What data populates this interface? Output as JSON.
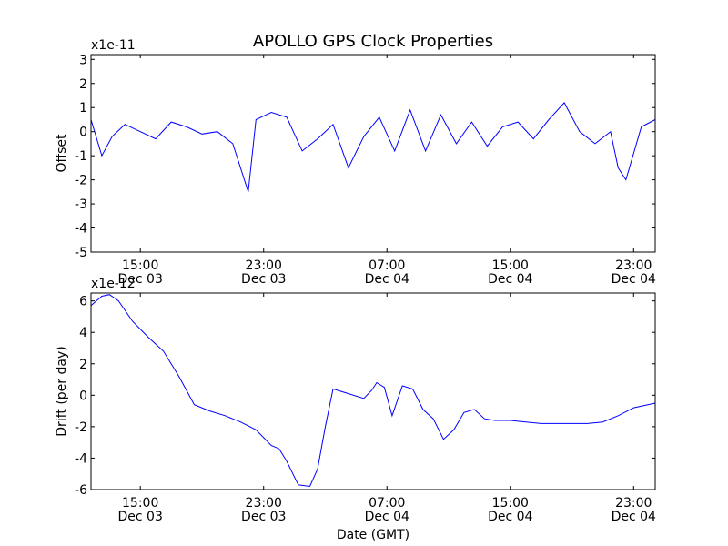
{
  "figure": {
    "title": "APOLLO GPS Clock Properties",
    "xlabel": "Date (GMT)"
  },
  "chart_data": [
    {
      "type": "line",
      "title": "APOLLO GPS Clock Properties",
      "ylabel": "Offset",
      "offset_text": "x1e-11",
      "color": "#0000ff",
      "xlim": [
        "2008-12-03 11:48",
        "2008-12-05 00:24"
      ],
      "ylim": [
        -5,
        3.2
      ],
      "yticks": [
        3,
        2,
        1,
        0,
        -1,
        -2,
        -3,
        -4,
        -5
      ],
      "ytick_labels": [
        "3",
        "2",
        "1",
        "0",
        "-1",
        "-2",
        "-3",
        "-4",
        "-5"
      ],
      "xticks": [
        "2008-12-03 15:00",
        "2008-12-03 23:00",
        "2008-12-04 07:00",
        "2008-12-04 15:00",
        "2008-12-04 23:00"
      ],
      "xtick_labels": [
        [
          "15:00",
          "Dec 03"
        ],
        [
          "23:00",
          "Dec 03"
        ],
        [
          "07:00",
          "Dec 04"
        ],
        [
          "15:00",
          "Dec 04"
        ],
        [
          "23:00",
          "Dec 04"
        ]
      ],
      "grid": false,
      "series": [
        {
          "x": [
            "2008-12-03 11:48",
            "2008-12-03 12:30",
            "2008-12-03 13:10",
            "2008-12-03 14:00",
            "2008-12-03 15:00",
            "2008-12-03 16:00",
            "2008-12-03 17:00",
            "2008-12-03 18:00",
            "2008-12-03 19:00",
            "2008-12-03 20:00",
            "2008-12-03 21:00",
            "2008-12-03 22:00",
            "2008-12-03 22:30",
            "2008-12-03 23:30",
            "2008-12-04 00:30",
            "2008-12-04 01:30",
            "2008-12-04 02:30",
            "2008-12-04 03:30",
            "2008-12-04 04:30",
            "2008-12-04 05:30",
            "2008-12-04 06:30",
            "2008-12-04 07:30",
            "2008-12-04 08:30",
            "2008-12-04 09:30",
            "2008-12-04 10:30",
            "2008-12-04 11:30",
            "2008-12-04 12:30",
            "2008-12-04 13:30",
            "2008-12-04 14:30",
            "2008-12-04 15:30",
            "2008-12-04 16:30",
            "2008-12-04 17:30",
            "2008-12-04 18:30",
            "2008-12-04 19:30",
            "2008-12-04 20:30",
            "2008-12-04 21:30",
            "2008-12-04 22:00",
            "2008-12-04 22:30",
            "2008-12-04 23:30",
            "2008-12-05 00:24"
          ],
          "values": [
            0.5,
            -1.0,
            -0.2,
            0.3,
            0.0,
            -0.3,
            0.4,
            0.2,
            -0.1,
            0.0,
            -0.5,
            -2.5,
            0.5,
            0.8,
            0.6,
            -0.8,
            -0.3,
            0.3,
            -1.5,
            -0.2,
            0.6,
            -0.8,
            0.9,
            -0.8,
            0.7,
            -0.5,
            0.4,
            -0.6,
            0.2,
            0.4,
            -0.3,
            0.5,
            1.2,
            0.0,
            -0.5,
            0.0,
            -1.5,
            -2.0,
            0.2,
            0.5
          ]
        }
      ]
    },
    {
      "type": "line",
      "ylabel": "Drift (per day)",
      "offset_text": "x1e-12",
      "color": "#0000ff",
      "xlim": [
        "2008-12-03 11:48",
        "2008-12-05 00:24"
      ],
      "ylim": [
        -6,
        6.5
      ],
      "yticks": [
        6,
        4,
        2,
        0,
        -2,
        -4,
        -6
      ],
      "ytick_labels": [
        "6",
        "4",
        "2",
        "0",
        "-2",
        "-4",
        "-6"
      ],
      "xticks": [
        "2008-12-03 15:00",
        "2008-12-03 23:00",
        "2008-12-04 07:00",
        "2008-12-04 15:00",
        "2008-12-04 23:00"
      ],
      "xtick_labels": [
        [
          "15:00",
          "Dec 03"
        ],
        [
          "23:00",
          "Dec 03"
        ],
        [
          "07:00",
          "Dec 04"
        ],
        [
          "15:00",
          "Dec 04"
        ],
        [
          "23:00",
          "Dec 04"
        ]
      ],
      "grid": false,
      "series": [
        {
          "x": [
            "2008-12-03 11:48",
            "2008-12-03 12:30",
            "2008-12-03 13:00",
            "2008-12-03 13:35",
            "2008-12-03 14:30",
            "2008-12-03 15:30",
            "2008-12-03 16:30",
            "2008-12-03 17:30",
            "2008-12-03 18:30",
            "2008-12-03 19:30",
            "2008-12-03 20:30",
            "2008-12-03 21:30",
            "2008-12-03 22:30",
            "2008-12-03 23:30",
            "2008-12-04 00:00",
            "2008-12-04 00:30",
            "2008-12-04 01:15",
            "2008-12-04 02:00",
            "2008-12-04 02:30",
            "2008-12-04 03:00",
            "2008-12-04 03:30",
            "2008-12-04 04:30",
            "2008-12-04 05:30",
            "2008-12-04 06:00",
            "2008-12-04 06:20",
            "2008-12-04 06:50",
            "2008-12-04 07:20",
            "2008-12-04 08:00",
            "2008-12-04 08:40",
            "2008-12-04 09:20",
            "2008-12-04 10:00",
            "2008-12-04 10:40",
            "2008-12-04 11:20",
            "2008-12-04 12:00",
            "2008-12-04 12:40",
            "2008-12-04 13:20",
            "2008-12-04 14:00",
            "2008-12-04 15:00",
            "2008-12-04 16:00",
            "2008-12-04 17:00",
            "2008-12-04 18:00",
            "2008-12-04 19:00",
            "2008-12-04 20:00",
            "2008-12-04 21:00",
            "2008-12-04 22:00",
            "2008-12-04 23:00",
            "2008-12-05 00:24"
          ],
          "values": [
            5.7,
            6.3,
            6.4,
            6.0,
            4.7,
            3.7,
            2.8,
            1.2,
            -0.6,
            -1.0,
            -1.3,
            -1.7,
            -2.2,
            -3.2,
            -3.4,
            -4.2,
            -5.7,
            -5.8,
            -4.7,
            -2.0,
            0.4,
            0.1,
            -0.2,
            0.3,
            0.8,
            0.5,
            -1.3,
            0.6,
            0.4,
            -0.9,
            -1.5,
            -2.8,
            -2.2,
            -1.1,
            -0.9,
            -1.5,
            -1.6,
            -1.6,
            -1.7,
            -1.8,
            -1.8,
            -1.8,
            -1.8,
            -1.7,
            -1.3,
            -0.8,
            -0.5
          ]
        }
      ]
    }
  ]
}
